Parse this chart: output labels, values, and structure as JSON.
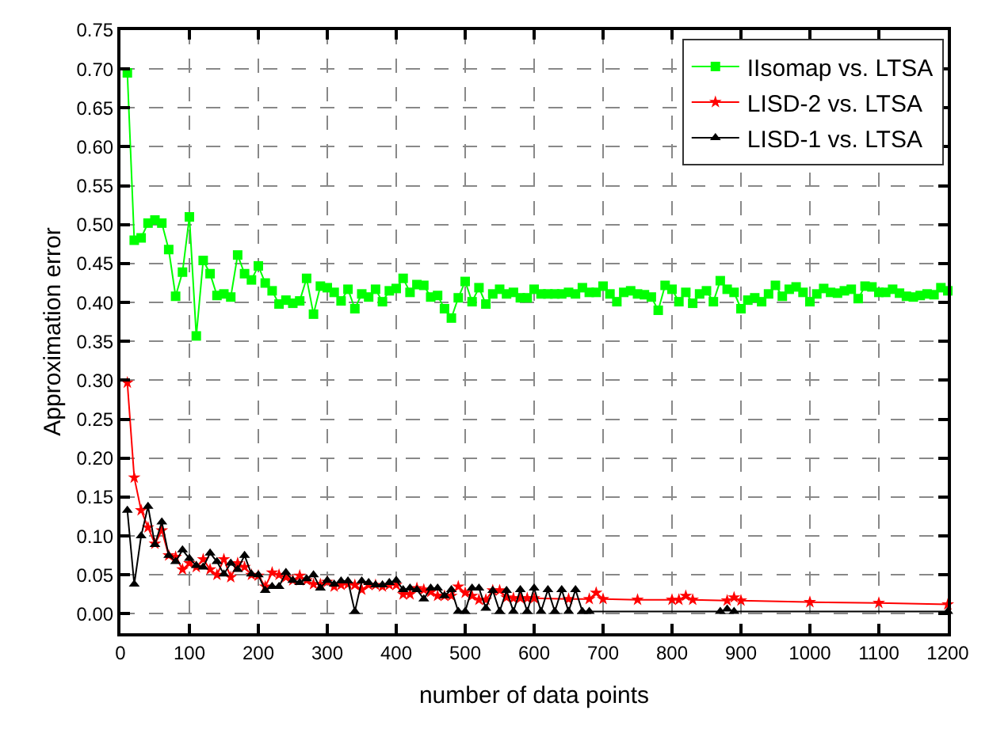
{
  "chart_data": {
    "type": "line",
    "xlabel": "number of data points",
    "ylabel": "Approximation error",
    "xlim": [
      0,
      1200
    ],
    "xticks": [
      0,
      100,
      200,
      300,
      400,
      500,
      600,
      700,
      800,
      900,
      1000,
      1100,
      1200
    ],
    "ylim": [
      -0.025,
      0.75
    ],
    "yticks": [
      {
        "value": 0,
        "label": "0.00"
      },
      {
        "value": 0.05,
        "label": "0.05"
      },
      {
        "value": 0.1,
        "label": "0.10"
      },
      {
        "value": 0.15,
        "label": "0.15"
      },
      {
        "value": 0.2,
        "label": "0.20"
      },
      {
        "value": 0.25,
        "label": "0.25"
      },
      {
        "value": 0.3,
        "label": "0.30"
      },
      {
        "value": 0.35,
        "label": "0.35"
      },
      {
        "value": 0.4,
        "label": "0.40"
      },
      {
        "value": 0.45,
        "label": "0.45"
      },
      {
        "value": 0.5,
        "label": "0.50"
      },
      {
        "value": 0.55,
        "label": "0.55"
      },
      {
        "value": 0.6,
        "label": "0.60"
      },
      {
        "value": 0.65,
        "label": "0.65"
      },
      {
        "value": 0.7,
        "label": "0.70"
      },
      {
        "value": 0.75,
        "label": "0.75"
      }
    ],
    "grid": true,
    "legend": "top right",
    "line_style": "solid",
    "series": [
      {
        "name": "IIsomap vs. LTSA",
        "color": "#00ff00",
        "marker": "square",
        "x": [
          10,
          20,
          30,
          40,
          50,
          60,
          70,
          80,
          90,
          100,
          110,
          120,
          130,
          140,
          150,
          160,
          170,
          180,
          190,
          200,
          210,
          220,
          230,
          240,
          250,
          260,
          270,
          280,
          290,
          300,
          310,
          320,
          330,
          340,
          350,
          360,
          370,
          380,
          390,
          400,
          410,
          420,
          430,
          440,
          450,
          460,
          470,
          480,
          490,
          500,
          510,
          520,
          530,
          540,
          550,
          560,
          570,
          580,
          590,
          600,
          610,
          620,
          630,
          640,
          650,
          660,
          670,
          680,
          690,
          700,
          710,
          720,
          730,
          740,
          750,
          760,
          770,
          780,
          790,
          800,
          810,
          820,
          830,
          840,
          850,
          860,
          870,
          880,
          890,
          900,
          910,
          920,
          930,
          940,
          950,
          960,
          970,
          980,
          990,
          1000,
          1010,
          1020,
          1030,
          1040,
          1050,
          1060,
          1070,
          1080,
          1090,
          1100,
          1110,
          1120,
          1130,
          1140,
          1150,
          1160,
          1170,
          1180,
          1190,
          1200
        ],
        "values": [
          0.695,
          0.48,
          0.483,
          0.502,
          0.506,
          0.502,
          0.468,
          0.408,
          0.439,
          0.51,
          0.357,
          0.454,
          0.437,
          0.409,
          0.411,
          0.407,
          0.461,
          0.437,
          0.429,
          0.447,
          0.425,
          0.415,
          0.398,
          0.403,
          0.399,
          0.402,
          0.431,
          0.385,
          0.421,
          0.419,
          0.413,
          0.402,
          0.417,
          0.392,
          0.411,
          0.407,
          0.417,
          0.401,
          0.415,
          0.418,
          0.431,
          0.413,
          0.423,
          0.422,
          0.407,
          0.409,
          0.392,
          0.38,
          0.406,
          0.427,
          0.401,
          0.419,
          0.398,
          0.411,
          0.417,
          0.411,
          0.413,
          0.406,
          0.406,
          0.417,
          0.411,
          0.411,
          0.411,
          0.411,
          0.413,
          0.411,
          0.419,
          0.413,
          0.413,
          0.421,
          0.411,
          0.401,
          0.413,
          0.415,
          0.411,
          0.41,
          0.407,
          0.39,
          0.422,
          0.417,
          0.401,
          0.413,
          0.399,
          0.411,
          0.415,
          0.401,
          0.428,
          0.417,
          0.413,
          0.392,
          0.403,
          0.406,
          0.401,
          0.411,
          0.422,
          0.408,
          0.417,
          0.42,
          0.413,
          0.401,
          0.411,
          0.418,
          0.413,
          0.412,
          0.415,
          0.417,
          0.405,
          0.421,
          0.42,
          0.413,
          0.413,
          0.417,
          0.412,
          0.408,
          0.407,
          0.409,
          0.411,
          0.41,
          0.419,
          0.415
        ]
      },
      {
        "name": "LISD-2 vs. LTSA",
        "color": "#ff0000",
        "marker": "star",
        "x": [
          10,
          20,
          30,
          40,
          50,
          60,
          70,
          80,
          90,
          100,
          110,
          120,
          130,
          140,
          150,
          160,
          170,
          180,
          190,
          200,
          210,
          220,
          230,
          240,
          250,
          260,
          270,
          280,
          290,
          300,
          310,
          320,
          330,
          340,
          350,
          360,
          370,
          380,
          390,
          400,
          410,
          420,
          430,
          440,
          450,
          460,
          470,
          480,
          490,
          500,
          510,
          520,
          530,
          540,
          550,
          560,
          570,
          580,
          590,
          600,
          650,
          680,
          690,
          700,
          750,
          800,
          810,
          820,
          830,
          880,
          890,
          900,
          1000,
          1100,
          1200
        ],
        "values": [
          0.297,
          0.175,
          0.133,
          0.111,
          0.09,
          0.107,
          0.075,
          0.073,
          0.057,
          0.065,
          0.06,
          0.07,
          0.057,
          0.05,
          0.07,
          0.047,
          0.065,
          0.06,
          0.05,
          0.049,
          0.035,
          0.053,
          0.05,
          0.047,
          0.043,
          0.049,
          0.043,
          0.038,
          0.038,
          0.041,
          0.035,
          0.037,
          0.038,
          0.037,
          0.031,
          0.037,
          0.037,
          0.035,
          0.037,
          0.037,
          0.025,
          0.025,
          0.033,
          0.031,
          0.028,
          0.023,
          0.023,
          0.023,
          0.035,
          0.027,
          0.023,
          0.018,
          0.018,
          0.03,
          0.03,
          0.021,
          0.02,
          0.02,
          0.02,
          0.02,
          0.019,
          0.019,
          0.027,
          0.019,
          0.018,
          0.018,
          0.018,
          0.023,
          0.018,
          0.017,
          0.021,
          0.017,
          0.015,
          0.014,
          0.012
        ]
      },
      {
        "name": "LISD-1 vs. LTSA",
        "color": "#000000",
        "marker": "triangle",
        "x": [
          10,
          20,
          30,
          40,
          50,
          60,
          70,
          80,
          90,
          100,
          110,
          120,
          130,
          140,
          150,
          160,
          170,
          180,
          190,
          200,
          210,
          220,
          230,
          240,
          250,
          260,
          270,
          280,
          290,
          300,
          310,
          320,
          330,
          340,
          350,
          360,
          370,
          380,
          390,
          400,
          410,
          420,
          430,
          440,
          450,
          460,
          470,
          480,
          490,
          500,
          510,
          520,
          530,
          540,
          550,
          560,
          570,
          580,
          590,
          600,
          610,
          620,
          630,
          640,
          650,
          660,
          670,
          680,
          870,
          880,
          890,
          1200
        ],
        "values": [
          0.133,
          0.038,
          0.1,
          0.138,
          0.089,
          0.118,
          0.075,
          0.067,
          0.082,
          0.071,
          0.062,
          0.06,
          0.078,
          0.067,
          0.051,
          0.065,
          0.057,
          0.075,
          0.051,
          0.05,
          0.03,
          0.035,
          0.035,
          0.053,
          0.043,
          0.04,
          0.045,
          0.05,
          0.033,
          0.043,
          0.038,
          0.042,
          0.042,
          0.003,
          0.042,
          0.04,
          0.037,
          0.037,
          0.04,
          0.043,
          0.031,
          0.033,
          0.031,
          0.019,
          0.033,
          0.033,
          0.023,
          0.031,
          0.003,
          0.003,
          0.033,
          0.033,
          0.007,
          0.03,
          0.003,
          0.03,
          0.003,
          0.031,
          0.003,
          0.033,
          0.003,
          0.031,
          0.003,
          0.031,
          0.003,
          0.031,
          0.003,
          0.003,
          0.003,
          0.006,
          0.003,
          0.003
        ]
      }
    ]
  }
}
